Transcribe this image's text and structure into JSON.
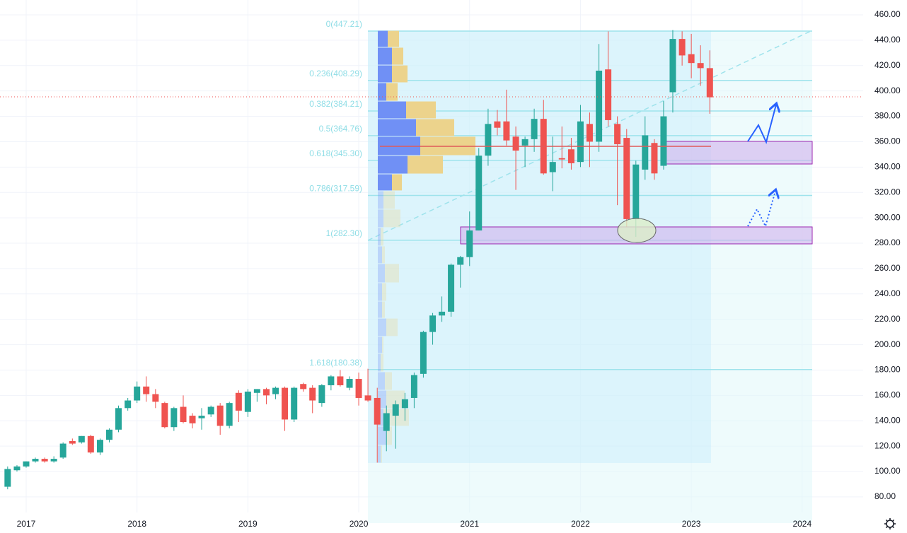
{
  "chart_data": {
    "type": "candlestick",
    "up_color": "#26a69a",
    "down_color": "#ef5350",
    "grid": true,
    "xlim": [
      2016.764,
      2024.55
    ],
    "xticks": [
      2017,
      2018,
      2019,
      2020,
      2021,
      2022,
      2023,
      2024
    ],
    "ylim": [
      67.7,
      471.7
    ],
    "yticks": [
      {
        "value": 80,
        "label": "80.00"
      },
      {
        "value": 100,
        "label": "100.00"
      },
      {
        "value": 120,
        "label": "120.00"
      },
      {
        "value": 140,
        "label": "140.00"
      },
      {
        "value": 160,
        "label": "160.00"
      },
      {
        "value": 180,
        "label": "180.00"
      },
      {
        "value": 200,
        "label": "200.00"
      },
      {
        "value": 220,
        "label": "220.00"
      },
      {
        "value": 240,
        "label": "240.00"
      },
      {
        "value": 260,
        "label": "260.00"
      },
      {
        "value": 280,
        "label": "280.00"
      },
      {
        "value": 300,
        "label": "300.00"
      },
      {
        "value": 320,
        "label": "320.00"
      },
      {
        "value": 340,
        "label": "340.00"
      },
      {
        "value": 360,
        "label": "360.00"
      },
      {
        "value": 380,
        "label": "380.00"
      },
      {
        "value": 400,
        "label": "400.00"
      },
      {
        "value": 420,
        "label": "420.00"
      },
      {
        "value": 440,
        "label": "440.00"
      },
      {
        "value": 460,
        "label": "460.00"
      }
    ],
    "x": [
      2016.833,
      2016.917,
      2017.0,
      2017.083,
      2017.167,
      2017.25,
      2017.333,
      2017.417,
      2017.5,
      2017.583,
      2017.667,
      2017.75,
      2017.833,
      2017.917,
      2018.0,
      2018.083,
      2018.167,
      2018.25,
      2018.333,
      2018.417,
      2018.5,
      2018.583,
      2018.667,
      2018.75,
      2018.833,
      2018.917,
      2019.0,
      2019.083,
      2019.167,
      2019.25,
      2019.333,
      2019.417,
      2019.5,
      2019.583,
      2019.667,
      2019.75,
      2019.833,
      2019.917,
      2020.0,
      2020.083,
      2020.167,
      2020.25,
      2020.333,
      2020.417,
      2020.5,
      2020.583,
      2020.667,
      2020.75,
      2020.833,
      2020.917,
      2021.0,
      2021.083,
      2021.167,
      2021.25,
      2021.333,
      2021.417,
      2021.5,
      2021.583,
      2021.667,
      2021.75,
      2021.833,
      2021.917,
      2022.0,
      2022.083,
      2022.167,
      2022.25,
      2022.333,
      2022.417,
      2022.5,
      2022.583,
      2022.667,
      2022.75,
      2022.833,
      2022.917,
      2023.0,
      2023.083,
      2023.167
    ],
    "open": [
      88,
      101,
      104,
      108,
      110,
      108,
      111,
      124,
      123,
      128,
      115,
      125,
      133,
      150,
      156,
      167,
      161,
      154,
      135,
      151,
      144,
      142,
      145,
      152,
      136,
      162,
      147,
      162,
      165,
      161,
      166,
      141,
      169,
      166,
      154,
      168,
      175,
      166,
      173,
      160,
      158,
      132,
      144,
      150,
      158,
      177,
      210,
      223,
      226,
      263,
      269,
      290,
      349,
      376,
      376,
      364,
      357,
      362,
      378,
      336,
      347,
      354,
      344,
      374,
      360,
      417,
      374,
      363,
      299,
      338,
      359,
      341,
      399,
      441,
      429,
      422,
      418
    ],
    "high": [
      104,
      105,
      108,
      111,
      111,
      112,
      123,
      126,
      128,
      129,
      126,
      134,
      152,
      158,
      171,
      175,
      165,
      155,
      151,
      160,
      146,
      150,
      152,
      154,
      155,
      164,
      165,
      165,
      166,
      167,
      167,
      167,
      170,
      168,
      169,
      176,
      180,
      175,
      178,
      181,
      166,
      152,
      156,
      162,
      178,
      211,
      225,
      238,
      264,
      270,
      305,
      355,
      386,
      385,
      401,
      372,
      364,
      386,
      393,
      364,
      372,
      363,
      389,
      383,
      437,
      447,
      380,
      370,
      345,
      380,
      362,
      392,
      448,
      447,
      445,
      436,
      432
    ],
    "low": [
      86,
      100,
      103,
      107,
      107,
      107,
      110,
      121,
      122,
      114,
      113,
      123,
      131,
      148,
      154,
      155,
      150,
      134,
      132,
      138,
      134,
      133,
      143,
      129,
      134,
      139,
      143,
      155,
      153,
      157,
      132,
      139,
      163,
      146,
      151,
      164,
      167,
      164,
      152,
      155,
      107,
      116,
      118,
      140,
      150,
      174,
      200,
      218,
      222,
      245,
      262,
      290,
      341,
      365,
      357,
      322,
      340,
      352,
      334,
      321,
      339,
      338,
      340,
      340,
      352,
      372,
      310,
      293,
      285,
      330,
      330,
      338,
      383,
      420,
      410,
      404,
      382
    ],
    "close": [
      102,
      104,
      108,
      110,
      108,
      110,
      122,
      122,
      128,
      115,
      125,
      133,
      150,
      156,
      167,
      161,
      155,
      135,
      150,
      139,
      138,
      144,
      151,
      136,
      154,
      148,
      163,
      165,
      160,
      166,
      141,
      166,
      165,
      156,
      168,
      175,
      168,
      173,
      158,
      156,
      137,
      146,
      153,
      157,
      176,
      210,
      223,
      226,
      263,
      269,
      290,
      349,
      374,
      371,
      361,
      353,
      362,
      378,
      335,
      344,
      346,
      343,
      376,
      360,
      416,
      377,
      358,
      299,
      342,
      365,
      335,
      380,
      441,
      428,
      422,
      418,
      395
    ],
    "fib_levels": [
      {
        "label": "0(447.21)",
        "price": 447.21
      },
      {
        "label": "0.236(408.29)",
        "price": 408.29
      },
      {
        "label": "0.382(384.21)",
        "price": 384.21
      },
      {
        "label": "0.5(364.76)",
        "price": 364.76
      },
      {
        "label": "0.618(345.30)",
        "price": 345.3
      },
      {
        "label": "0.786(317.59)",
        "price": 317.59
      },
      {
        "label": "1(282.30)",
        "price": 282.3
      },
      {
        "label": "1.618(180.38)",
        "price": 180.38
      }
    ],
    "volume_profile": {
      "bin_edges": [
        447.7,
        434.4,
        420.4,
        406.5,
        392.0,
        378.1,
        364.2,
        349.1,
        334.6,
        321.3,
        306.8,
        292.3,
        277.8,
        263.9,
        248.8,
        234.3,
        220.9,
        206.5,
        193.1,
        178.6,
        164.1,
        149.6,
        135.7,
        120.7,
        106.7
      ],
      "up": [
        14,
        20,
        20,
        12,
        40,
        54,
        60,
        42,
        20,
        8,
        8,
        4,
        6,
        10,
        6,
        6,
        12,
        6,
        4,
        10,
        12,
        8,
        12,
        4
      ],
      "down": [
        16,
        16,
        22,
        16,
        42,
        54,
        78,
        50,
        14,
        16,
        24,
        4,
        4,
        20,
        6,
        4,
        16,
        2,
        4,
        10,
        26,
        36,
        8,
        2
      ],
      "up_color": "#7090f5",
      "down_color": "#ecd38c"
    }
  }
}
